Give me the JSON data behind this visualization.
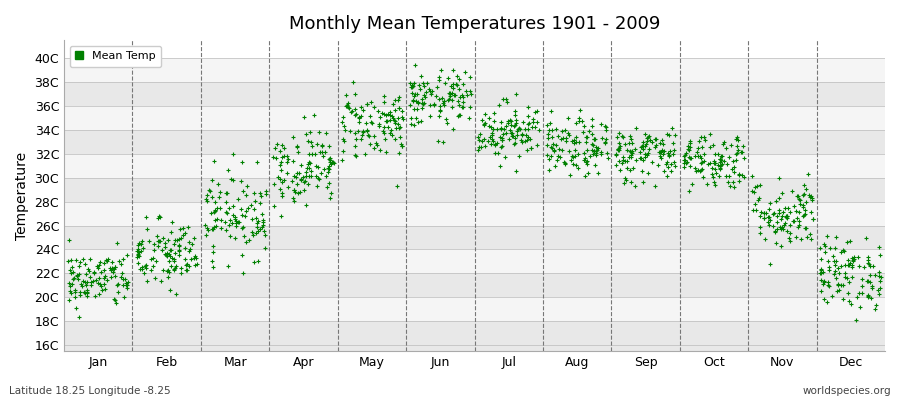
{
  "title": "Monthly Mean Temperatures 1901 - 2009",
  "ylabel": "Temperature",
  "xlabel": "",
  "month_labels": [
    "Jan",
    "Feb",
    "Mar",
    "Apr",
    "May",
    "Jun",
    "Jul",
    "Aug",
    "Sep",
    "Oct",
    "Nov",
    "Dec"
  ],
  "ytick_labels": [
    "16C",
    "18C",
    "20C",
    "22C",
    "24C",
    "26C",
    "28C",
    "30C",
    "32C",
    "34C",
    "36C",
    "38C",
    "40C"
  ],
  "ytick_values": [
    16,
    18,
    20,
    22,
    24,
    26,
    28,
    30,
    32,
    34,
    36,
    38,
    40
  ],
  "ylim": [
    15.5,
    41.5
  ],
  "dot_color": "#008000",
  "dot_size": 10,
  "background_color": "#ffffff",
  "band_color_light": "#e8e8e8",
  "band_color_white": "#f5f5f5",
  "legend_label": "Mean Temp",
  "footer_left": "Latitude 18.25 Longitude -8.25",
  "footer_right": "worldspecies.org",
  "n_years": 109,
  "monthly_means": [
    21.5,
    23.5,
    27.0,
    31.0,
    34.5,
    36.5,
    34.0,
    32.5,
    32.0,
    31.5,
    27.0,
    22.0
  ],
  "monthly_stds": [
    1.2,
    1.5,
    1.8,
    1.6,
    1.5,
    1.2,
    1.2,
    1.2,
    1.2,
    1.2,
    1.5,
    1.5
  ]
}
